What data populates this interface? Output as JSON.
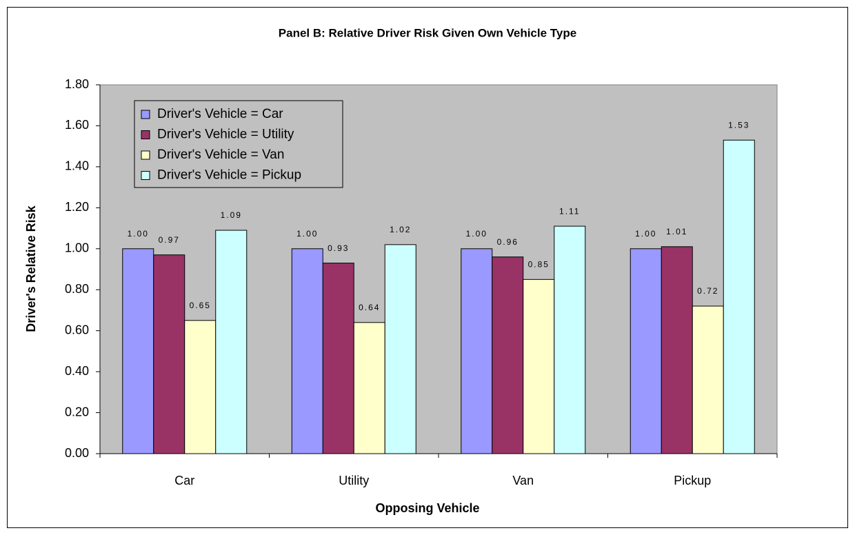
{
  "chart_data": {
    "type": "bar",
    "title": "Panel B: Relative Driver Risk Given Own Vehicle Type",
    "x_label": "Opposing Vehicle",
    "y_label": "Driver's Relative Risk",
    "categories": [
      "Car",
      "Utility",
      "Van",
      "Pickup"
    ],
    "series": [
      {
        "name": "Driver's Vehicle = Car",
        "color": "#9999ff",
        "values": [
          1.0,
          1.0,
          1.0,
          1.0
        ],
        "value_labels": [
          "1.00",
          "1.00",
          "1.00",
          "1.00"
        ]
      },
      {
        "name": "Driver's Vehicle = Utility",
        "color": "#993366",
        "values": [
          0.97,
          0.93,
          0.96,
          1.01
        ],
        "value_labels": [
          "0.97",
          "0.93",
          "0.96",
          "1.01"
        ]
      },
      {
        "name": "Driver's Vehicle = Van",
        "color": "#ffffcc",
        "values": [
          0.65,
          0.64,
          0.85,
          0.72
        ],
        "value_labels": [
          "0.65",
          "0.64",
          "0.85",
          "0.72"
        ]
      },
      {
        "name": "Driver's Vehicle = Pickup",
        "color": "#ccffff",
        "values": [
          1.09,
          1.02,
          1.11,
          1.53
        ],
        "value_labels": [
          "1.09",
          "1.02",
          "1.11",
          "1.53"
        ]
      }
    ],
    "ylim": [
      0,
      1.8
    ],
    "yticks": [
      {
        "value": 0,
        "label": "0.00"
      },
      {
        "value": 0.2,
        "label": "0.20"
      },
      {
        "value": 0.4,
        "label": "0.40"
      },
      {
        "value": 0.6,
        "label": "0.60"
      },
      {
        "value": 0.8,
        "label": "0.80"
      },
      {
        "value": 1.0,
        "label": "1.00"
      },
      {
        "value": 1.2,
        "label": "1.20"
      },
      {
        "value": 1.4,
        "label": "1.40"
      },
      {
        "value": 1.6,
        "label": "1.60"
      },
      {
        "value": 1.8,
        "label": "1.80"
      }
    ],
    "legend": "upper left",
    "plot_background": "#c0c0c0"
  }
}
